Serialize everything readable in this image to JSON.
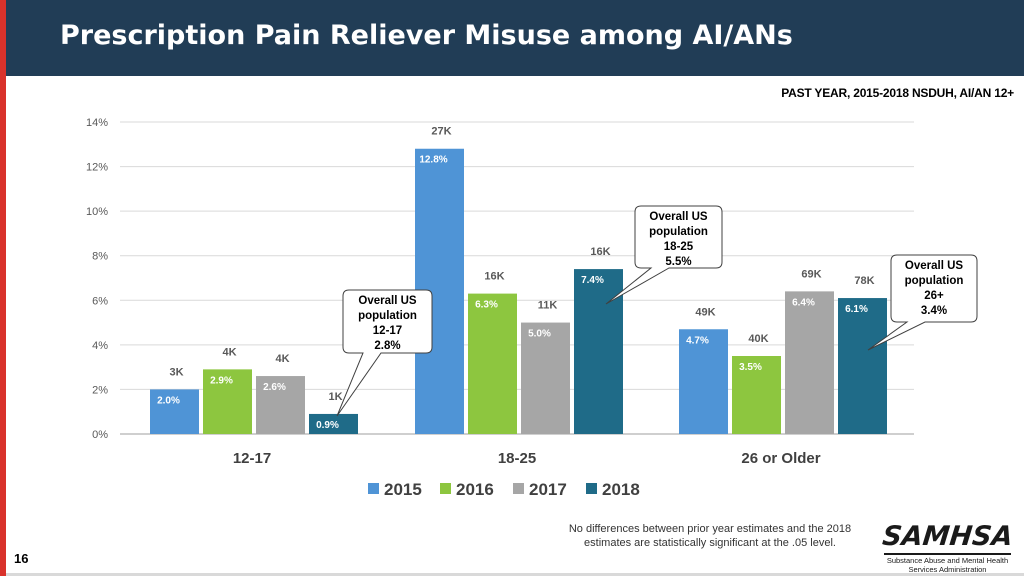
{
  "title": "Prescription Pain Reliever Misuse among AI/ANs",
  "subtitle": "PAST YEAR, 2015-2018 NSDUH, AI/AN 12+",
  "footnote": "No differences between prior year estimates and the 2018 estimates are statistically significant at the .05 level.",
  "page_number": "16",
  "logo": {
    "word": "SAMHSA",
    "sub": "Substance Abuse and Mental Health Services Administration"
  },
  "colors": {
    "header": "#213d56",
    "stripe": "#d9322b",
    "s2015": "#4f94d6",
    "s2016": "#8dc63f",
    "s2017": "#a6a6a6",
    "s2018": "#1f6b88"
  },
  "chart_data": {
    "type": "bar",
    "title": "Prescription Pain Reliever Misuse among AI/ANs",
    "xlabel": "",
    "ylabel": "",
    "ylim": [
      0,
      14
    ],
    "yticks": [
      0,
      2,
      4,
      6,
      8,
      10,
      12,
      14
    ],
    "ytick_labels": [
      "0%",
      "2%",
      "4%",
      "6%",
      "8%",
      "10%",
      "12%",
      "14%"
    ],
    "grid": true,
    "categories": [
      "12-17",
      "18-25",
      "26 or Older"
    ],
    "series": [
      {
        "name": "2015",
        "color": "#4f94d6",
        "values": [
          2.0,
          12.8,
          4.7
        ],
        "value_labels": [
          "2.0%",
          "12.8%",
          "4.7%"
        ],
        "count_labels": [
          "3K",
          "27K",
          "49K"
        ]
      },
      {
        "name": "2016",
        "color": "#8dc63f",
        "values": [
          2.9,
          6.3,
          3.5
        ],
        "value_labels": [
          "2.9%",
          "6.3%",
          "3.5%"
        ],
        "count_labels": [
          "4K",
          "16K",
          "40K"
        ]
      },
      {
        "name": "2017",
        "color": "#a6a6a6",
        "values": [
          2.6,
          5.0,
          6.4
        ],
        "value_labels": [
          "2.6%",
          "5.0%",
          "6.4%"
        ],
        "count_labels": [
          "4K",
          "11K",
          "69K"
        ]
      },
      {
        "name": "2018",
        "color": "#1f6b88",
        "values": [
          0.9,
          7.4,
          6.1
        ],
        "value_labels": [
          "0.9%",
          "7.4%",
          "6.1%"
        ],
        "count_labels": [
          "1K",
          "16K",
          "78K"
        ]
      }
    ],
    "legend_position": "bottom-center",
    "annotations": [
      {
        "lines": [
          "Overall US",
          "population",
          "12-17",
          "2.8%"
        ],
        "category": 0,
        "value": 2.8
      },
      {
        "lines": [
          "Overall US",
          "population",
          "18-25",
          "5.5%"
        ],
        "category": 1,
        "value": 5.5
      },
      {
        "lines": [
          "Overall US",
          "population",
          "26+",
          "3.4%"
        ],
        "category": 2,
        "value": 3.4
      }
    ]
  }
}
